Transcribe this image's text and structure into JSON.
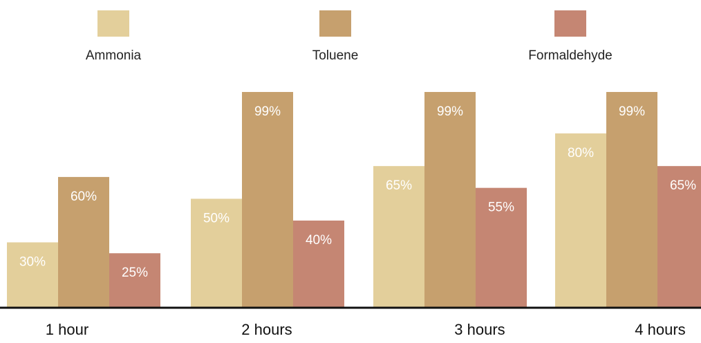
{
  "chart_data": {
    "type": "bar",
    "categories": [
      "1 hour",
      "2 hours",
      "3 hours",
      "4 hours"
    ],
    "series": [
      {
        "name": "Ammonia",
        "color": "#E3CF9B",
        "values": [
          30,
          50,
          65,
          80
        ],
        "labels": [
          "30%",
          "50%",
          "65%",
          "80%"
        ]
      },
      {
        "name": "Toluene",
        "color": "#C6A06E",
        "values": [
          60,
          99,
          99,
          99
        ],
        "labels": [
          "60%",
          "99%",
          "99%",
          "99%"
        ]
      },
      {
        "name": "Formaldehyde",
        "color": "#C58673",
        "values": [
          25,
          40,
          55,
          65
        ],
        "labels": [
          "25%",
          "40%",
          "55%",
          "65%"
        ]
      }
    ],
    "ylim": [
      0,
      100
    ],
    "grid": false,
    "legend": "top"
  }
}
